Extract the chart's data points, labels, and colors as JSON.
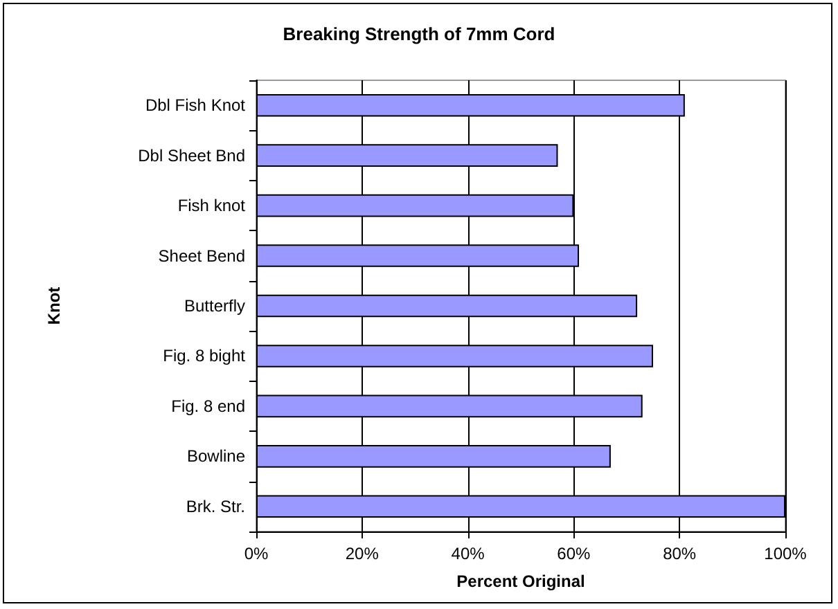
{
  "chart_data": {
    "type": "bar",
    "orientation": "horizontal",
    "title": "Breaking Strength of 7mm Cord",
    "xlabel": "Percent Original",
    "ylabel": "Knot",
    "categories": [
      "Dbl Fish Knot",
      "Dbl Sheet Bnd",
      "Fish knot",
      "Sheet Bend",
      "Butterfly",
      "Fig. 8 bight",
      "Fig. 8 end",
      "Bowline",
      "Brk. Str."
    ],
    "values": [
      81,
      57,
      60,
      61,
      72,
      75,
      73,
      67,
      100
    ],
    "color": "#9999ff",
    "xlim": [
      0,
      100
    ],
    "xticks": [
      {
        "value": 0,
        "label": "0%"
      },
      {
        "value": 20,
        "label": "20%"
      },
      {
        "value": 40,
        "label": "40%"
      },
      {
        "value": 60,
        "label": "60%"
      },
      {
        "value": 80,
        "label": "80%"
      },
      {
        "value": 100,
        "label": "100%"
      }
    ],
    "grid": "x"
  }
}
